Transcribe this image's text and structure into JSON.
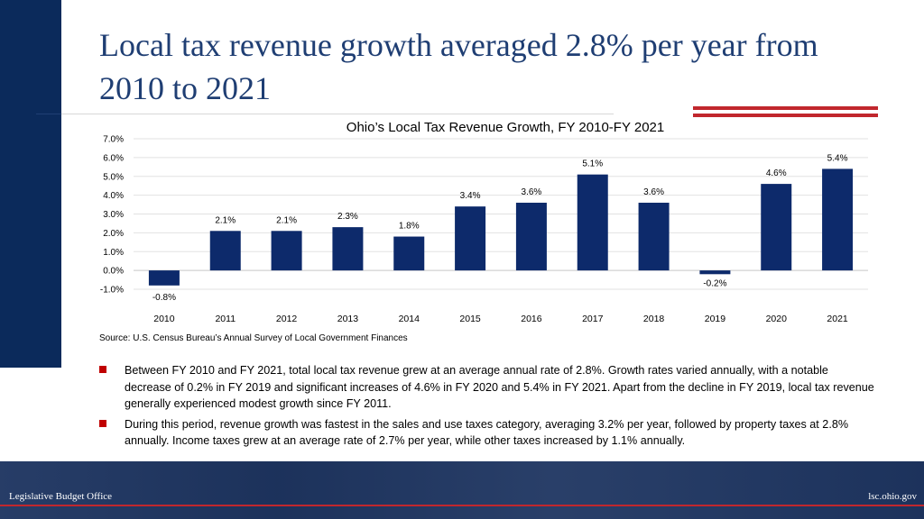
{
  "slide": {
    "title": "Local tax revenue growth averaged 2.8% per year from 2010 to 2021",
    "source": "Source: U.S. Census Bureau’s Annual Survey of Local Government Finances",
    "bullets": [
      "Between FY 2010 and FY 2021, total local tax revenue grew at an average annual rate of 2.8%. Growth rates varied annually, with a notable decrease of 0.2% in FY 2019 and significant increases of 4.6% in FY 2020 and 5.4% in FY 2021. Apart from the decline in FY 2019, local tax revenue generally experienced modest growth since FY 2011.",
      "During this period, revenue growth was fastest in the sales and use taxes category, averaging 3.2% per year, followed by property taxes at 2.8% annually. Income taxes grew at an average rate of 2.7% per year, while other taxes increased by 1.1% annually."
    ]
  },
  "footer": {
    "left": "Legislative Budget Office",
    "right": "lsc.ohio.gov"
  },
  "colors": {
    "bar": "#0d2a6b",
    "accent_red": "#c1272d",
    "title": "#1f3e73",
    "navy": "#0b2a5b"
  },
  "chart_data": {
    "type": "bar",
    "title": "Ohio’s Local Tax Revenue Growth, FY 2010-FY 2021",
    "categories": [
      "2010",
      "2011",
      "2012",
      "2013",
      "2014",
      "2015",
      "2016",
      "2017",
      "2018",
      "2019",
      "2020",
      "2021"
    ],
    "values": [
      -0.8,
      2.1,
      2.1,
      2.3,
      1.8,
      3.4,
      3.6,
      5.1,
      3.6,
      -0.2,
      4.6,
      5.4
    ],
    "data_labels": [
      "-0.8%",
      "2.1%",
      "2.1%",
      "2.3%",
      "1.8%",
      "3.4%",
      "3.6%",
      "5.1%",
      "3.6%",
      "-0.2%",
      "4.6%",
      "5.4%"
    ],
    "yticks": [
      "7.0%",
      "6.0%",
      "5.0%",
      "4.0%",
      "3.0%",
      "2.0%",
      "1.0%",
      "0.0%",
      "-1.0%"
    ],
    "ytick_values": [
      7,
      6,
      5,
      4,
      3,
      2,
      1,
      0,
      -1
    ],
    "ylim": [
      -1,
      7
    ],
    "xlabel": "",
    "ylabel": "",
    "grid": true,
    "legend": false
  }
}
